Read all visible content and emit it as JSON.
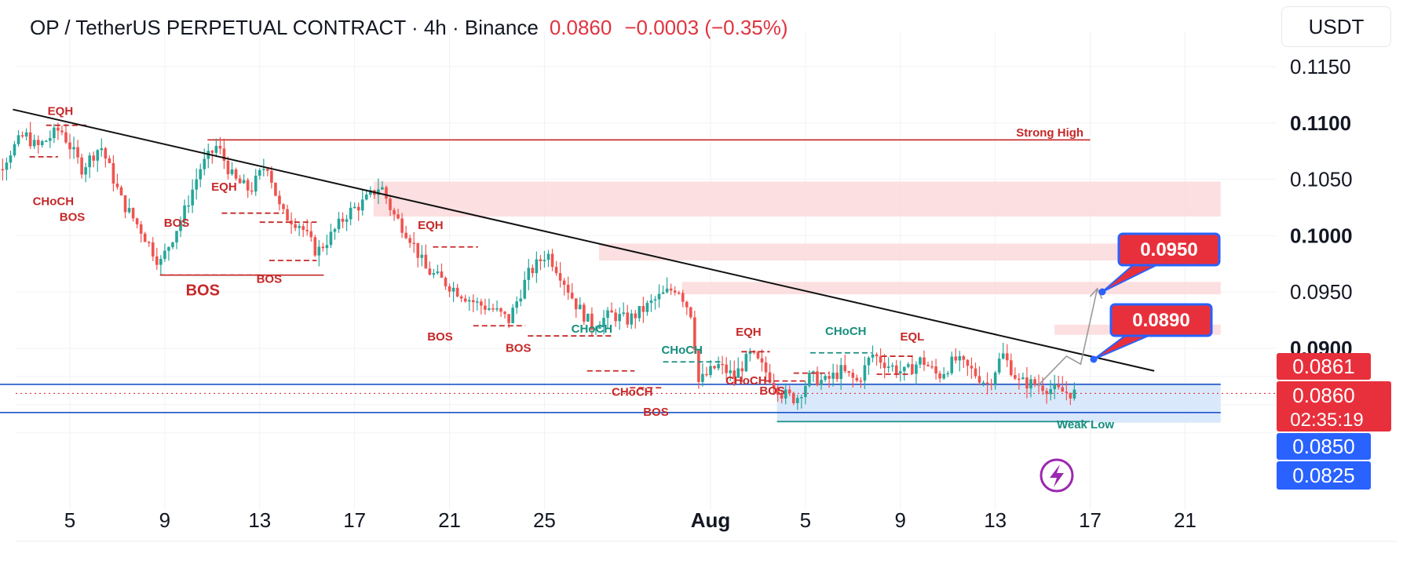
{
  "header": {
    "symbol": "OP / TetherUS PERPETUAL CONTRACT · 4h · Binance",
    "price": "0.0860",
    "change": "−0.0003 (−0.35%)"
  },
  "currency_button": "USDT",
  "colors": {
    "bull": "#26a69a",
    "bear": "#ef5350",
    "structure_red": "#c62828",
    "structure_green": "#178f7f",
    "zone": "#fbd9db",
    "demand": "#d6e6fb",
    "blue_line": "#1e55c8"
  },
  "chart_data": {
    "type": "candlestick",
    "symbol": "OP / TetherUS PERPETUAL CONTRACT",
    "interval": "4h",
    "exchange": "Binance",
    "ylim": [
      0.081,
      0.119
    ],
    "y_ticks": [
      {
        "label": "0.1150",
        "value": 0.115,
        "bold": false
      },
      {
        "label": "0.1100",
        "value": 0.11,
        "bold": true
      },
      {
        "label": "0.1050",
        "value": 0.105,
        "bold": false
      },
      {
        "label": "0.1000",
        "value": 0.1,
        "bold": true
      },
      {
        "label": "0.0950",
        "value": 0.095,
        "bold": false
      },
      {
        "label": "0.0900",
        "value": 0.09,
        "bold": true
      }
    ],
    "x_ticks": [
      {
        "label": "5",
        "day": 5,
        "bold": false
      },
      {
        "label": "9",
        "day": 9,
        "bold": false
      },
      {
        "label": "13",
        "day": 13,
        "bold": false
      },
      {
        "label": "17",
        "day": 17,
        "bold": false
      },
      {
        "label": "21",
        "day": 21,
        "bold": false
      },
      {
        "label": "25",
        "day": 25,
        "bold": false
      },
      {
        "label": "Aug",
        "day": 32,
        "bold": true
      },
      {
        "label": "5",
        "day": 36,
        "bold": false
      },
      {
        "label": "9",
        "day": 40,
        "bold": false
      },
      {
        "label": "13",
        "day": 44,
        "bold": false
      },
      {
        "label": "17",
        "day": 48,
        "bold": false
      },
      {
        "label": "21",
        "day": 52,
        "bold": false
      }
    ],
    "price_path": [
      [
        1,
        0.098
      ],
      [
        1.6,
        0.1045
      ],
      [
        2.5,
        0.1075
      ],
      [
        3.1,
        0.109
      ],
      [
        3.6,
        0.1078
      ],
      [
        4.6,
        0.1095
      ],
      [
        5.5,
        0.106
      ],
      [
        6.3,
        0.108
      ],
      [
        7.2,
        0.103
      ],
      [
        8.0,
        0.1005
      ],
      [
        8.8,
        0.0975
      ],
      [
        9.8,
        0.102
      ],
      [
        10.5,
        0.106
      ],
      [
        11.2,
        0.108
      ],
      [
        11.9,
        0.105
      ],
      [
        12.6,
        0.104
      ],
      [
        13.3,
        0.1065
      ],
      [
        13.9,
        0.102
      ],
      [
        14.7,
        0.101
      ],
      [
        15.4,
        0.0985
      ],
      [
        16.0,
        0.1
      ],
      [
        16.7,
        0.102
      ],
      [
        17.4,
        0.103
      ],
      [
        18.1,
        0.1045
      ],
      [
        18.6,
        0.102
      ],
      [
        19.3,
        0.1
      ],
      [
        20.0,
        0.097
      ],
      [
        20.7,
        0.096
      ],
      [
        21.4,
        0.095
      ],
      [
        22.1,
        0.094
      ],
      [
        22.8,
        0.0935
      ],
      [
        23.5,
        0.0925
      ],
      [
        24.3,
        0.0965
      ],
      [
        25.1,
        0.0985
      ],
      [
        25.7,
        0.0965
      ],
      [
        26.3,
        0.094
      ],
      [
        27.0,
        0.092
      ],
      [
        27.8,
        0.093
      ],
      [
        28.5,
        0.0925
      ],
      [
        29.2,
        0.0935
      ],
      [
        29.8,
        0.0945
      ],
      [
        30.6,
        0.0955
      ],
      [
        31.2,
        0.093
      ],
      [
        31.5,
        0.087
      ],
      [
        32.3,
        0.0885
      ],
      [
        33.0,
        0.0875
      ],
      [
        33.7,
        0.0895
      ],
      [
        34.3,
        0.088
      ],
      [
        35.0,
        0.086
      ],
      [
        35.6,
        0.0855
      ],
      [
        36.2,
        0.0875
      ],
      [
        36.8,
        0.087
      ],
      [
        37.5,
        0.088
      ],
      [
        38.2,
        0.087
      ],
      [
        38.8,
        0.0895
      ],
      [
        39.5,
        0.0885
      ],
      [
        40.2,
        0.0878
      ],
      [
        40.9,
        0.089
      ],
      [
        41.6,
        0.0875
      ],
      [
        42.3,
        0.089
      ],
      [
        43.0,
        0.088
      ],
      [
        43.7,
        0.0868
      ],
      [
        44.3,
        0.0895
      ],
      [
        45.0,
        0.087
      ],
      [
        45.8,
        0.0868
      ],
      [
        46.6,
        0.0862
      ],
      [
        47.4,
        0.086
      ]
    ],
    "current_price": 0.086,
    "countdown": "02:35:19",
    "price_tags": [
      {
        "label": "0.0861",
        "value": 0.0861,
        "color": "#e8303c"
      },
      {
        "label": "0.0860",
        "value": 0.086,
        "color": "#e8303c"
      },
      {
        "label": "0.0850",
        "value": 0.085,
        "color": "#2962ff"
      },
      {
        "label": "0.0825",
        "value": 0.0825,
        "color": "#2962ff"
      }
    ],
    "callouts": [
      {
        "label": "0.0950",
        "value": 0.095
      },
      {
        "label": "0.0890",
        "value": 0.089
      }
    ],
    "zones": [
      {
        "kind": "supply",
        "from_day": 17.8,
        "to_day": 53.5,
        "low": 0.1017,
        "high": 0.1048
      },
      {
        "kind": "supply",
        "from_day": 27.3,
        "to_day": 53.5,
        "low": 0.0978,
        "high": 0.0993
      },
      {
        "kind": "supply",
        "from_day": 30.8,
        "to_day": 53.5,
        "low": 0.0948,
        "high": 0.0959
      },
      {
        "kind": "supply",
        "from_day": 46.5,
        "to_day": 53.5,
        "low": 0.0912,
        "high": 0.0921
      },
      {
        "kind": "demand",
        "from_day": 34.8,
        "to_day": 53.5,
        "low": 0.0834,
        "high": 0.0869
      }
    ],
    "levels": [
      {
        "name": "Strong High",
        "value": 0.1085,
        "from_day": 10.8,
        "to_day": 48.0,
        "color": "#c62828"
      },
      {
        "name": "Weak Low",
        "value": 0.0835,
        "from_day": 34.8,
        "to_day": 48.0,
        "color": "#178f7f"
      },
      {
        "name": "",
        "value": 0.0868,
        "from_day": -0.5,
        "to_day": 53.5,
        "color": "#1e55c8"
      },
      {
        "name": "",
        "value": 0.0843,
        "from_day": -0.5,
        "to_day": 53.5,
        "color": "#1e55c8"
      }
    ],
    "trendline": {
      "from": [
        2.6,
        0.1112
      ],
      "to": [
        50.7,
        0.088
      ]
    },
    "annotations": [
      {
        "text": "EQH",
        "day": 4.6,
        "value": 0.1107,
        "color": "red"
      },
      {
        "text": "CHoCH",
        "day": 4.3,
        "value": 0.1027,
        "color": "red"
      },
      {
        "text": "BOS",
        "day": 5.1,
        "value": 0.1013,
        "color": "red"
      },
      {
        "text": "BOS",
        "day": 9.5,
        "value": 0.1008,
        "color": "red"
      },
      {
        "text": "EQH",
        "day": 11.5,
        "value": 0.104,
        "color": "red"
      },
      {
        "text": "BOS",
        "day": 13.4,
        "value": 0.0958,
        "color": "red"
      },
      {
        "text": "BOS",
        "day": 10.6,
        "value": 0.0947,
        "color": "red",
        "big": true
      },
      {
        "text": "EQH",
        "day": 20.2,
        "value": 0.1006,
        "color": "red"
      },
      {
        "text": "BOS",
        "day": 20.6,
        "value": 0.0907,
        "color": "red"
      },
      {
        "text": "BOS",
        "day": 23.9,
        "value": 0.0897,
        "color": "red"
      },
      {
        "text": "CHoCH",
        "day": 27.0,
        "value": 0.0914,
        "color": "green"
      },
      {
        "text": "CHoCH",
        "day": 30.8,
        "value": 0.0895,
        "color": "green"
      },
      {
        "text": "CHoCH",
        "day": 28.7,
        "value": 0.0858,
        "color": "red"
      },
      {
        "text": "BOS",
        "day": 29.7,
        "value": 0.084,
        "color": "red"
      },
      {
        "text": "EQH",
        "day": 33.6,
        "value": 0.0911,
        "color": "red"
      },
      {
        "text": "CHoCH",
        "day": 33.5,
        "value": 0.0868,
        "color": "red"
      },
      {
        "text": "BOS",
        "day": 34.6,
        "value": 0.0859,
        "color": "red"
      },
      {
        "text": "CHoCH",
        "day": 37.7,
        "value": 0.0912,
        "color": "green"
      },
      {
        "text": "EQL",
        "day": 40.5,
        "value": 0.0907,
        "color": "red"
      },
      {
        "text": "Strong High",
        "day": 46.3,
        "value": 0.1088,
        "color": "red"
      },
      {
        "text": "Weak Low",
        "day": 47.8,
        "value": 0.0829,
        "color": "green"
      }
    ]
  }
}
